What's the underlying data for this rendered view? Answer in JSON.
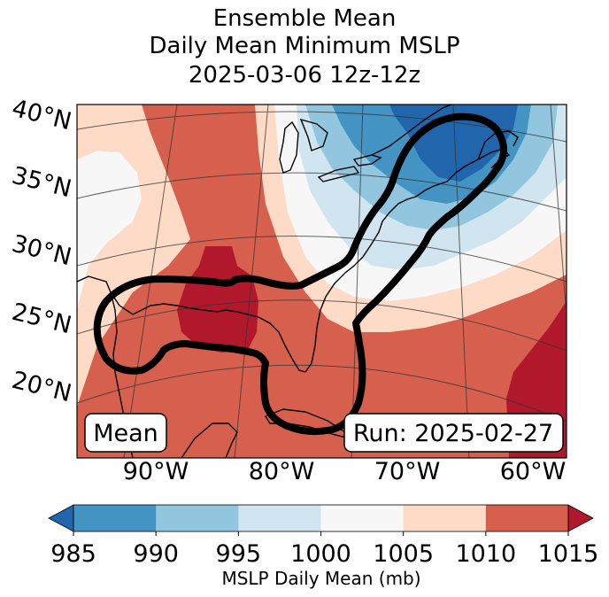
{
  "title": {
    "line1": "Ensemble Mean",
    "line2": "Daily Mean Minimum MSLP",
    "line3": "2025-03-06 12z-12z"
  },
  "annotations": {
    "left_box": "Mean",
    "right_box": "Run: 2025-02-27"
  },
  "chart_data": {
    "type": "heatmap",
    "subtype": "filled-contour map (Lambert conformal projection)",
    "title": "Ensemble Mean\nDaily Mean Minimum MSLP\n2025-03-06 12z-12z",
    "variable": "MSLP Daily Mean (mb)",
    "latitude_ticks": [
      "20°N",
      "25°N",
      "30°N",
      "35°N",
      "40°N"
    ],
    "longitude_ticks": [
      "90°W",
      "80°W",
      "70°W",
      "60°W"
    ],
    "lat_range": [
      17,
      42
    ],
    "lon_range": [
      -97,
      -59
    ],
    "colorbar": {
      "label": "MSLP Daily Mean (mb)",
      "ticks": [
        985,
        990,
        995,
        1000,
        1005,
        1010,
        1015
      ],
      "tick_labels": [
        "985",
        "990",
        "995",
        "1000",
        "1005",
        "1010",
        "1015"
      ],
      "extend": "both",
      "levels": [
        {
          "range": "<985",
          "color": "#2166ac"
        },
        {
          "range": "985-990",
          "color": "#4393c3"
        },
        {
          "range": "990-995",
          "color": "#92c5de"
        },
        {
          "range": "995-1000",
          "color": "#d1e5f0"
        },
        {
          "range": "1000-1005",
          "color": "#f7f7f7"
        },
        {
          "range": "1005-1010",
          "color": "#fddbc7"
        },
        {
          "range": "1010-1015",
          "color": "#d6604d"
        },
        {
          "range": ">1015",
          "color": "#b2182b"
        }
      ]
    },
    "features": [
      {
        "name": "Low near Nova Scotia / Gulf of Maine",
        "value_range": "<985 mb"
      },
      {
        "name": "High over central Gulf of Mexico / Louisiana coast",
        "value_range": ">1015 mb"
      },
      {
        "name": "High over subtropical Atlantic (SE corner)",
        "value_range": ">1015 mb"
      },
      {
        "name": "Ridge extending north through Mississippi Valley",
        "value_range": "1010-1015 mb"
      }
    ],
    "outline": "thick black contour enclosing Gulf of Mexico and U.S. East Coast to Maritimes",
    "grid": true
  }
}
